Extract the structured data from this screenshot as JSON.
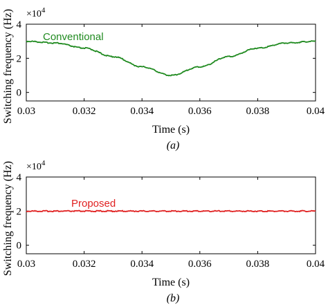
{
  "chart_data": [
    {
      "type": "line",
      "subfigure_label": "(a)",
      "xlabel": "Time (s)",
      "ylabel": "Switching frequency (Hz)",
      "y_multiplier": "×10",
      "y_multiplier_exp": "4",
      "xlim": [
        0.03,
        0.04
      ],
      "ylim": [
        -0.5,
        4
      ],
      "x_ticks": [
        "0.03",
        "0.032",
        "0.034",
        "0.036",
        "0.038",
        "0.04"
      ],
      "y_ticks": [
        "0",
        "2",
        "4"
      ],
      "grid": false,
      "series": [
        {
          "name": "Conventional",
          "color": "#1f8a1f",
          "x": [
            0.03,
            0.031,
            0.032,
            0.033,
            0.034,
            0.035,
            0.036,
            0.037,
            0.038,
            0.039,
            0.04
          ],
          "y": [
            3.0,
            2.9,
            2.6,
            2.1,
            1.5,
            1.0,
            1.5,
            2.1,
            2.6,
            2.9,
            3.0
          ]
        }
      ]
    },
    {
      "type": "line",
      "subfigure_label": "(b)",
      "xlabel": "Time (s)",
      "ylabel": "Switching frequency (Hz)",
      "y_multiplier": "×10",
      "y_multiplier_exp": "4",
      "xlim": [
        0.03,
        0.04
      ],
      "ylim": [
        -0.5,
        4
      ],
      "x_ticks": [
        "0.03",
        "0.032",
        "0.034",
        "0.036",
        "0.038",
        "0.04"
      ],
      "y_ticks": [
        "0",
        "2",
        "4"
      ],
      "grid": false,
      "series": [
        {
          "name": "Proposed",
          "color": "#e02020",
          "x": [
            0.03,
            0.032,
            0.034,
            0.036,
            0.038,
            0.04
          ],
          "y": [
            2.0,
            2.0,
            2.0,
            2.0,
            2.0,
            2.0
          ]
        }
      ]
    }
  ]
}
